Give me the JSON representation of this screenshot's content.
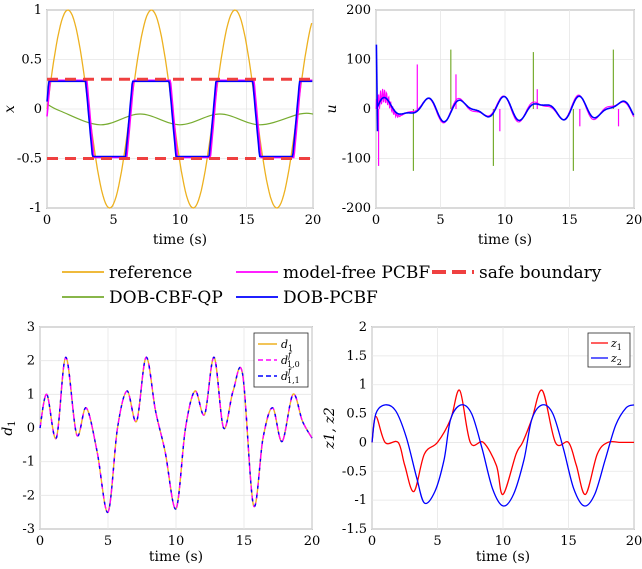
{
  "legend": {
    "reference": "reference",
    "model_free": "model-free PCBF",
    "safe": "safe boundary",
    "dob_cbf": "DOB-CBF-QP",
    "dob_pcbf": "DOB-PCBF"
  },
  "colors": {
    "reference": "#EDB120",
    "model_free": "#FF00FF",
    "dob_cbf": "#77AC30",
    "dob_pcbf": "#0000FF",
    "safe": "#EF4040",
    "z1": "#FF0000",
    "z2": "#0000FF",
    "d1": "#EDB120",
    "d10": "#FF00FF",
    "d11": "#0000FF"
  },
  "chart_data": [
    {
      "id": "x-plot",
      "type": "line",
      "xlabel": "time (s)",
      "ylabel": "x",
      "xlim": [
        0,
        20
      ],
      "ylim": [
        -1,
        1
      ],
      "xticks": [
        "0",
        "5",
        "10",
        "15",
        "20"
      ],
      "yticks": [
        "1",
        "0.5",
        "0",
        "-0.5",
        "-1"
      ],
      "grid": true,
      "safe_boundary": [
        0.3,
        -0.5
      ],
      "series": [
        {
          "name": "reference",
          "x": [
            0,
            1.6,
            4.7,
            7.9,
            11.0,
            14.1,
            17.3,
            20
          ],
          "y": [
            0,
            1,
            -1,
            1,
            -1,
            1,
            -1,
            0.88
          ]
        },
        {
          "name": "model-free PCBF",
          "x": [
            0,
            1,
            3,
            4,
            6,
            7,
            9,
            10,
            12,
            13,
            15,
            16,
            18,
            20
          ],
          "y": [
            0,
            0.29,
            0.29,
            -0.49,
            -0.49,
            0.29,
            0.29,
            -0.49,
            -0.49,
            0.29,
            0.29,
            -0.49,
            -0.49,
            0.29
          ]
        },
        {
          "name": "DOB-CBF-QP",
          "x": [
            0,
            1,
            4,
            7,
            10,
            13,
            16,
            19,
            20
          ],
          "y": [
            0.05,
            -0.02,
            -0.16,
            -0.05,
            -0.16,
            -0.05,
            -0.16,
            -0.05,
            -0.05
          ]
        },
        {
          "name": "DOB-PCBF",
          "x": [
            0,
            1,
            3,
            4,
            6,
            7,
            9,
            10,
            12,
            13,
            15,
            16,
            18,
            20
          ],
          "y": [
            0,
            0.28,
            0.28,
            -0.48,
            -0.48,
            0.28,
            0.28,
            -0.48,
            -0.48,
            0.28,
            0.28,
            -0.48,
            -0.48,
            0.28
          ]
        },
        {
          "name": "safe boundary",
          "y": [
            0.3,
            -0.5
          ]
        }
      ]
    },
    {
      "id": "u-plot",
      "type": "line",
      "xlabel": "time (s)",
      "ylabel": "u",
      "xlim": [
        0,
        20
      ],
      "ylim": [
        -200,
        200
      ],
      "xticks": [
        "0",
        "5",
        "10",
        "15",
        "20"
      ],
      "yticks": [
        "200",
        "100",
        "0",
        "-100",
        "-200"
      ],
      "grid": true,
      "series": [
        {
          "name": "DOB-PCBF",
          "x": [
            0,
            0.1,
            1,
            2,
            3,
            4,
            5,
            6,
            7,
            8,
            9,
            10,
            11,
            12,
            13,
            14,
            15,
            16,
            17,
            18,
            19,
            20
          ],
          "y": [
            130,
            -40,
            20,
            -30,
            15,
            -25,
            20,
            -20,
            25,
            -25,
            15,
            -20,
            20,
            -25,
            15,
            -20,
            25,
            -20,
            15,
            -25,
            10,
            5
          ]
        },
        {
          "name": "model-free PCBF",
          "spikes_x": [
            0.2,
            3.2,
            6.2,
            9.6,
            12.5,
            15.8,
            18.8
          ],
          "spikes_y": [
            -115,
            90,
            70,
            -45,
            40,
            -35,
            -35
          ]
        },
        {
          "name": "DOB-CBF-QP",
          "spikes_x": [
            2.9,
            5.8,
            9.1,
            12.2,
            15.3,
            18.4
          ],
          "spikes_y": [
            -125,
            120,
            -115,
            115,
            -125,
            120
          ]
        }
      ]
    },
    {
      "id": "d1-plot",
      "type": "line",
      "xlabel": "time (s)",
      "ylabel": "d",
      "ylabel_sub": "1",
      "xlim": [
        0,
        20
      ],
      "ylim": [
        -3,
        3
      ],
      "xticks": [
        "0",
        "5",
        "10",
        "15",
        "20"
      ],
      "yticks": [
        "3",
        "2",
        "1",
        "0",
        "-1",
        "-2",
        "-3"
      ],
      "grid": true,
      "legend_labels": [
        {
          "base": "d",
          "sup": "",
          "sub": "1"
        },
        {
          "base": "d",
          "sup": "f",
          "sub": "1,0"
        },
        {
          "base": "d",
          "sup": "f",
          "sub": "1,1"
        }
      ],
      "series": [
        {
          "name": "d1",
          "x": [
            0,
            0.5,
            1.2,
            1.9,
            2.7,
            3.4,
            4.2,
            5.0,
            5.7,
            6.4,
            7.1,
            7.8,
            8.5,
            9.2,
            10.0,
            10.7,
            11.4,
            12.1,
            12.8,
            13.5,
            14.2,
            14.9,
            15.7,
            16.4,
            17.1,
            17.8,
            18.6,
            19.3,
            20
          ],
          "y": [
            0,
            1.0,
            -0.3,
            2.1,
            -0.2,
            0.6,
            -0.7,
            -2.5,
            0.0,
            1.1,
            0.2,
            2.1,
            0.5,
            -0.7,
            -2.4,
            0.0,
            1.1,
            0.4,
            2.1,
            0.0,
            1.1,
            1.6,
            -2.3,
            -0.3,
            0.6,
            -0.4,
            1.0,
            0.2,
            -0.3
          ]
        }
      ]
    },
    {
      "id": "z-plot",
      "type": "line",
      "xlabel": "time (s)",
      "ylabel": "z1, z2",
      "xlim": [
        0,
        20
      ],
      "ylim": [
        -1.5,
        2
      ],
      "xticks": [
        "0",
        "5",
        "10",
        "15",
        "20"
      ],
      "yticks": [
        "2",
        "1.5",
        "1",
        "0.5",
        "0",
        "-0.5",
        "-1",
        "-1.5"
      ],
      "grid": true,
      "legend_labels": [
        {
          "base": "z",
          "sub": "1"
        },
        {
          "base": "z",
          "sub": "2"
        }
      ],
      "series": [
        {
          "name": "z1",
          "x": [
            0,
            0.3,
            1,
            2,
            2.5,
            3.2,
            4,
            5,
            6,
            6.7,
            7.5,
            8.5,
            9.5,
            10,
            11,
            11.5,
            12.2,
            13,
            14,
            15,
            15.6,
            16.3,
            17.2,
            18,
            19,
            20
          ],
          "y": [
            0,
            0.45,
            0.0,
            0.0,
            -0.4,
            -0.85,
            -0.2,
            0.0,
            0.4,
            0.9,
            0.0,
            0.0,
            -0.4,
            -0.9,
            -0.2,
            0.0,
            0.4,
            0.9,
            0.0,
            0.0,
            -0.4,
            -0.9,
            -0.2,
            0.0,
            0.0,
            0.0
          ]
        },
        {
          "name": "z2",
          "x": [
            0,
            0.3,
            1,
            1.8,
            2.6,
            3.4,
            4.0,
            4.8,
            5.5,
            6.0,
            6.8,
            7.6,
            8.4,
            9.2,
            10.0,
            10.8,
            11.6,
            12.2,
            13.0,
            13.8,
            14.6,
            15.4,
            16.2,
            17.0,
            17.8,
            18.6,
            19.4,
            20
          ],
          "y": [
            0,
            0.5,
            0.65,
            0.55,
            0.1,
            -0.6,
            -1.05,
            -0.85,
            -0.3,
            0.4,
            0.65,
            0.5,
            -0.1,
            -0.8,
            -1.1,
            -0.9,
            -0.3,
            0.4,
            0.65,
            0.5,
            -0.1,
            -0.8,
            -1.1,
            -0.9,
            -0.3,
            0.3,
            0.6,
            0.65
          ]
        }
      ]
    }
  ]
}
